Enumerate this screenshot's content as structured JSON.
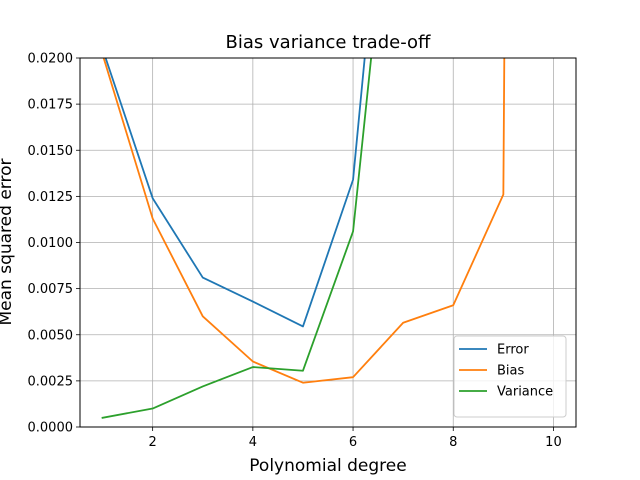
{
  "chart_data": {
    "type": "line",
    "title": "Bias variance trade-off",
    "xlabel": "Polynomial degree",
    "ylabel": "Mean squared error",
    "xlim": [
      0.55,
      10.45
    ],
    "ylim": [
      0,
      0.02
    ],
    "xticks": [
      2,
      4,
      6,
      8,
      10
    ],
    "xtick_labels": [
      "2",
      "4",
      "6",
      "8",
      "10"
    ],
    "yticks": [
      0,
      0.0025,
      0.005,
      0.0075,
      0.01,
      0.0125,
      0.015,
      0.0175,
      0.02
    ],
    "ytick_labels": [
      "0.0000",
      "0.0025",
      "0.0050",
      "0.0075",
      "0.0100",
      "0.0125",
      "0.0150",
      "0.0175",
      "0.0200"
    ],
    "grid": true,
    "legend_position": "lower-right",
    "series": [
      {
        "name": "Error",
        "color": "#1f77b4",
        "x": [
          1,
          2,
          3,
          4,
          5,
          6,
          6.25
        ],
        "y": [
          0.0205,
          0.0124,
          0.0081,
          0.0068,
          0.00545,
          0.0134,
          0.0205
        ]
      },
      {
        "name": "Bias",
        "color": "#ff7f0e",
        "x": [
          1,
          2,
          3,
          4,
          5,
          6,
          7,
          8,
          9,
          9.02
        ],
        "y": [
          0.0202,
          0.0113,
          0.006,
          0.00355,
          0.0024,
          0.0027,
          0.00565,
          0.0066,
          0.0126,
          0.0205
        ]
      },
      {
        "name": "Variance",
        "color": "#2ca02c",
        "x": [
          1,
          2,
          3,
          4,
          5,
          6,
          6.38
        ],
        "y": [
          0.0005,
          0.001,
          0.0022,
          0.00325,
          0.00305,
          0.0106,
          0.0205
        ]
      }
    ]
  }
}
